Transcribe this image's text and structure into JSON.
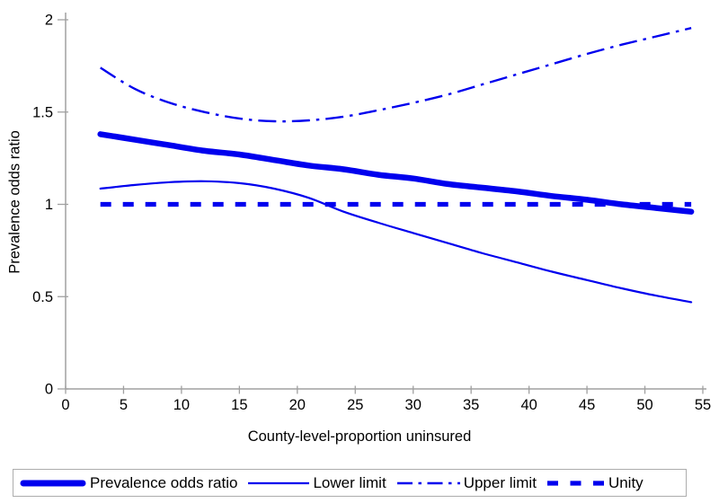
{
  "page": {
    "background": "#ffffff"
  },
  "chart_data": {
    "type": "line",
    "title": "",
    "xlabel": "County-level-proportion uninsured",
    "ylabel": "Prevalence odds ratio",
    "xlim": [
      0,
      55
    ],
    "ylim": [
      0,
      2
    ],
    "x_ticks": [
      0,
      5,
      10,
      15,
      20,
      25,
      30,
      35,
      40,
      45,
      50,
      55
    ],
    "y_ticks": [
      0,
      0.5,
      1,
      1.5,
      2
    ],
    "y_tick_labels": [
      "0",
      "0.5",
      "1",
      "1.5",
      "2"
    ],
    "grid": false,
    "legend_position": "bottom",
    "colors": {
      "series": "#0000ee",
      "axis": "#a0a0a0",
      "text": "#000000",
      "legend_border": "#adadad"
    },
    "x": [
      3,
      6,
      9,
      12,
      15,
      18,
      21,
      24,
      27,
      30,
      33,
      36,
      39,
      42,
      45,
      48,
      51,
      54
    ],
    "series": [
      {
        "name": "Prevalence odds ratio",
        "style": "thick-solid",
        "values": [
          1.38,
          1.35,
          1.32,
          1.29,
          1.27,
          1.24,
          1.21,
          1.19,
          1.16,
          1.14,
          1.11,
          1.09,
          1.07,
          1.045,
          1.025,
          1.0,
          0.98,
          0.96
        ]
      },
      {
        "name": "Lower limit",
        "style": "thin-solid",
        "values": [
          1.085,
          1.105,
          1.12,
          1.125,
          1.115,
          1.085,
          1.035,
          0.96,
          0.9,
          0.845,
          0.79,
          0.735,
          0.685,
          0.635,
          0.59,
          0.545,
          0.505,
          0.47
        ]
      },
      {
        "name": "Upper limit",
        "style": "dash-dot",
        "values": [
          1.74,
          1.625,
          1.55,
          1.5,
          1.465,
          1.45,
          1.455,
          1.475,
          1.51,
          1.55,
          1.595,
          1.65,
          1.705,
          1.76,
          1.815,
          1.865,
          1.91,
          1.955
        ]
      },
      {
        "name": "Unity",
        "style": "thick-dash",
        "values": [
          1.0,
          1.0,
          1.0,
          1.0,
          1.0,
          1.0,
          1.0,
          1.0,
          1.0,
          1.0,
          1.0,
          1.0,
          1.0,
          1.0,
          1.0,
          1.0,
          1.0,
          1.0
        ]
      }
    ]
  }
}
